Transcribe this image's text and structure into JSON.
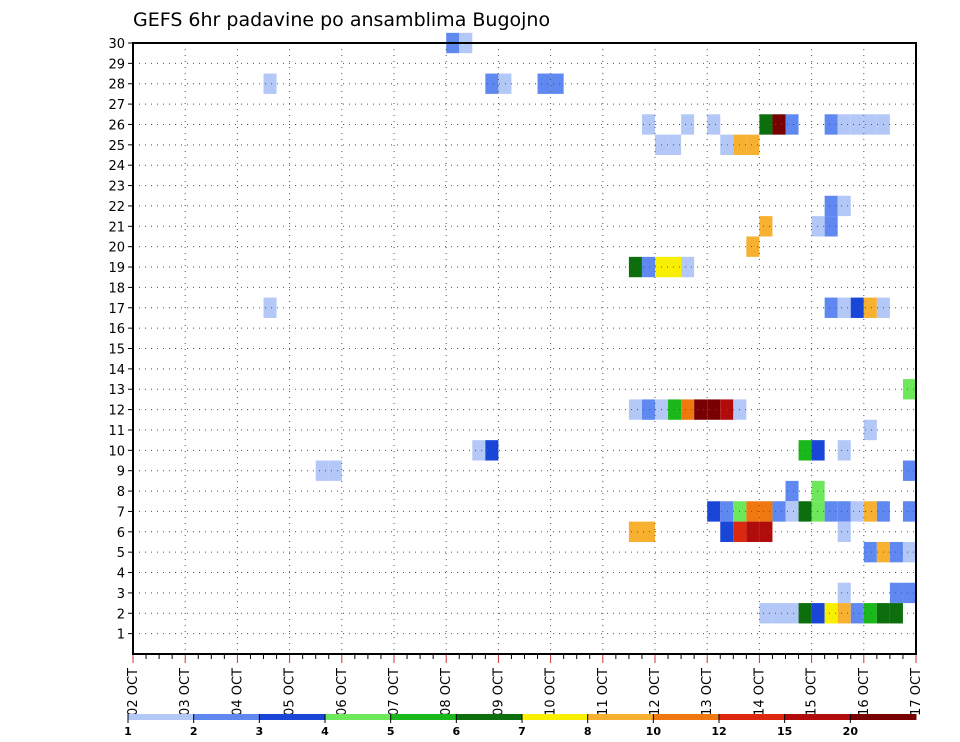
{
  "chart_data": {
    "type": "heatmap",
    "title": "GEFS 6hr padavine po ansamblima Bugojno",
    "xlabel": "",
    "ylabel": "",
    "x_ticks": [
      "02 OCT",
      "03 OCT",
      "04 OCT",
      "05 OCT",
      "06 OCT",
      "07 OCT",
      "08 OCT",
      "09 OCT",
      "10 OCT",
      "11 OCT",
      "12 OCT",
      "13 OCT",
      "14 OCT",
      "15 OCT",
      "16 OCT",
      "17 OCT"
    ],
    "x_range": [
      0,
      60
    ],
    "y_ticks": [
      1,
      2,
      3,
      4,
      5,
      6,
      7,
      8,
      9,
      10,
      11,
      12,
      13,
      14,
      15,
      16,
      17,
      18,
      19,
      20,
      21,
      22,
      23,
      24,
      25,
      26,
      27,
      28,
      29,
      30
    ],
    "y_range": [
      0,
      30
    ],
    "grid": true,
    "colorscale": {
      "labels": [
        "1",
        "2",
        "3",
        "4",
        "5",
        "6",
        "7",
        "8",
        "10",
        "12",
        "15",
        "20"
      ],
      "colors": [
        "#b4c8f8",
        "#5f88f0",
        "#1a46d8",
        "#6de85a",
        "#1ab81a",
        "#0c6e0c",
        "#f8f000",
        "#f8b030",
        "#f07810",
        "#dc280c",
        "#b00c0c",
        "#780000"
      ]
    },
    "cells": [
      {
        "m": 30,
        "s": 24,
        "c": 1
      },
      {
        "m": 30,
        "s": 25,
        "c": 0
      },
      {
        "m": 28,
        "s": 10,
        "c": 0
      },
      {
        "m": 28,
        "s": 27,
        "c": 1
      },
      {
        "m": 28,
        "s": 28,
        "c": 0
      },
      {
        "m": 28,
        "s": 31,
        "c": 1
      },
      {
        "m": 28,
        "s": 32,
        "c": 1
      },
      {
        "m": 26,
        "s": 39,
        "c": 0
      },
      {
        "m": 26,
        "s": 42,
        "c": 0
      },
      {
        "m": 26,
        "s": 44,
        "c": 0
      },
      {
        "m": 26,
        "s": 48,
        "c": 5
      },
      {
        "m": 26,
        "s": 49,
        "c": 11
      },
      {
        "m": 26,
        "s": 50,
        "c": 1
      },
      {
        "m": 26,
        "s": 53,
        "c": 1
      },
      {
        "m": 26,
        "s": 54,
        "c": 0
      },
      {
        "m": 26,
        "s": 55,
        "c": 0
      },
      {
        "m": 26,
        "s": 56,
        "c": 0
      },
      {
        "m": 26,
        "s": 57,
        "c": 0
      },
      {
        "m": 25,
        "s": 40,
        "c": 0
      },
      {
        "m": 25,
        "s": 41,
        "c": 0
      },
      {
        "m": 25,
        "s": 45,
        "c": 0
      },
      {
        "m": 25,
        "s": 46,
        "c": 7
      },
      {
        "m": 25,
        "s": 47,
        "c": 7
      },
      {
        "m": 22,
        "s": 53,
        "c": 1
      },
      {
        "m": 22,
        "s": 54,
        "c": 0
      },
      {
        "m": 21,
        "s": 48,
        "c": 7
      },
      {
        "m": 21,
        "s": 52,
        "c": 0
      },
      {
        "m": 21,
        "s": 53,
        "c": 1
      },
      {
        "m": 20,
        "s": 47,
        "c": 7
      },
      {
        "m": 19,
        "s": 38,
        "c": 5
      },
      {
        "m": 19,
        "s": 39,
        "c": 1
      },
      {
        "m": 19,
        "s": 40,
        "c": 6
      },
      {
        "m": 19,
        "s": 41,
        "c": 6
      },
      {
        "m": 19,
        "s": 42,
        "c": 0
      },
      {
        "m": 17,
        "s": 10,
        "c": 0
      },
      {
        "m": 17,
        "s": 53,
        "c": 1
      },
      {
        "m": 17,
        "s": 54,
        "c": 0
      },
      {
        "m": 17,
        "s": 55,
        "c": 2
      },
      {
        "m": 17,
        "s": 56,
        "c": 7
      },
      {
        "m": 17,
        "s": 57,
        "c": 0
      },
      {
        "m": 13,
        "s": 59,
        "c": 3
      },
      {
        "m": 12,
        "s": 38,
        "c": 0
      },
      {
        "m": 12,
        "s": 39,
        "c": 1
      },
      {
        "m": 12,
        "s": 40,
        "c": 0
      },
      {
        "m": 12,
        "s": 41,
        "c": 4
      },
      {
        "m": 12,
        "s": 42,
        "c": 8
      },
      {
        "m": 12,
        "s": 43,
        "c": 11
      },
      {
        "m": 12,
        "s": 44,
        "c": 11
      },
      {
        "m": 12,
        "s": 45,
        "c": 10
      },
      {
        "m": 12,
        "s": 46,
        "c": 0
      },
      {
        "m": 11,
        "s": 56,
        "c": 0
      },
      {
        "m": 10,
        "s": 26,
        "c": 0
      },
      {
        "m": 10,
        "s": 27,
        "c": 2
      },
      {
        "m": 10,
        "s": 51,
        "c": 4
      },
      {
        "m": 10,
        "s": 52,
        "c": 2
      },
      {
        "m": 10,
        "s": 54,
        "c": 0
      },
      {
        "m": 9,
        "s": 14,
        "c": 0
      },
      {
        "m": 9,
        "s": 15,
        "c": 0
      },
      {
        "m": 9,
        "s": 59,
        "c": 1
      },
      {
        "m": 8,
        "s": 50,
        "c": 1
      },
      {
        "m": 8,
        "s": 52,
        "c": 3
      },
      {
        "m": 7,
        "s": 44,
        "c": 2
      },
      {
        "m": 7,
        "s": 45,
        "c": 1
      },
      {
        "m": 7,
        "s": 46,
        "c": 3
      },
      {
        "m": 7,
        "s": 47,
        "c": 8
      },
      {
        "m": 7,
        "s": 48,
        "c": 8
      },
      {
        "m": 7,
        "s": 49,
        "c": 1
      },
      {
        "m": 7,
        "s": 50,
        "c": 0
      },
      {
        "m": 7,
        "s": 51,
        "c": 5
      },
      {
        "m": 7,
        "s": 52,
        "c": 3
      },
      {
        "m": 7,
        "s": 53,
        "c": 1
      },
      {
        "m": 7,
        "s": 54,
        "c": 1
      },
      {
        "m": 7,
        "s": 55,
        "c": 0
      },
      {
        "m": 7,
        "s": 56,
        "c": 7
      },
      {
        "m": 7,
        "s": 57,
        "c": 1
      },
      {
        "m": 7,
        "s": 59,
        "c": 1
      },
      {
        "m": 6,
        "s": 38,
        "c": 7
      },
      {
        "m": 6,
        "s": 39,
        "c": 7
      },
      {
        "m": 6,
        "s": 45,
        "c": 2
      },
      {
        "m": 6,
        "s": 46,
        "c": 9
      },
      {
        "m": 6,
        "s": 47,
        "c": 10
      },
      {
        "m": 6,
        "s": 48,
        "c": 10
      },
      {
        "m": 6,
        "s": 54,
        "c": 0
      },
      {
        "m": 5,
        "s": 56,
        "c": 1
      },
      {
        "m": 5,
        "s": 57,
        "c": 7
      },
      {
        "m": 5,
        "s": 58,
        "c": 1
      },
      {
        "m": 5,
        "s": 59,
        "c": 0
      },
      {
        "m": 3,
        "s": 54,
        "c": 0
      },
      {
        "m": 3,
        "s": 58,
        "c": 1
      },
      {
        "m": 3,
        "s": 59,
        "c": 1
      },
      {
        "m": 2,
        "s": 48,
        "c": 0
      },
      {
        "m": 2,
        "s": 49,
        "c": 0
      },
      {
        "m": 2,
        "s": 50,
        "c": 0
      },
      {
        "m": 2,
        "s": 51,
        "c": 5
      },
      {
        "m": 2,
        "s": 52,
        "c": 2
      },
      {
        "m": 2,
        "s": 53,
        "c": 6
      },
      {
        "m": 2,
        "s": 54,
        "c": 7
      },
      {
        "m": 2,
        "s": 55,
        "c": 1
      },
      {
        "m": 2,
        "s": 56,
        "c": 4
      },
      {
        "m": 2,
        "s": 57,
        "c": 5
      },
      {
        "m": 2,
        "s": 58,
        "c": 5
      }
    ]
  }
}
